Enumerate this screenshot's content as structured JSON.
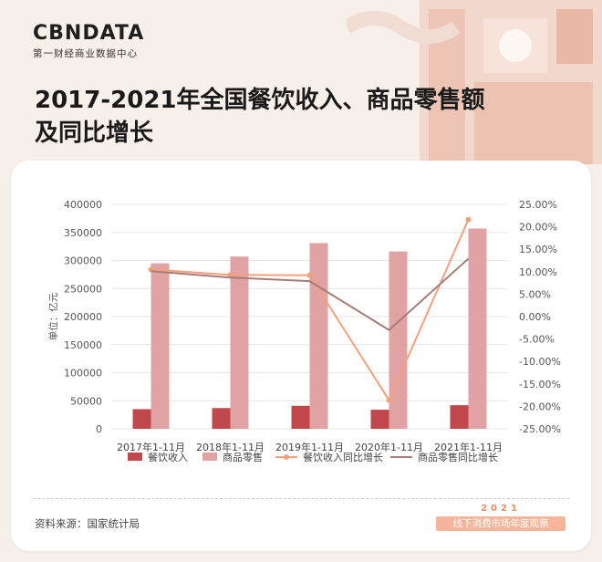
{
  "brand": {
    "logo": "CBNDATA",
    "subtitle": "第一财经商业数据中心"
  },
  "title_line1": "2017-2021年全国餐饮收入、商品零售额",
  "title_line2": "及同比增长",
  "source": "资料来源：国家统计局",
  "stamp": {
    "year": "2021",
    "text": "线下消费市场年度观察"
  },
  "colors": {
    "bar1": "#c0484c",
    "bar2": "#e1a2a3",
    "line1": "#f4a07c",
    "line2": "#a47e77",
    "background": "#f7efe9"
  },
  "chart_data": {
    "type": "bar",
    "categories": [
      "2017年1-11月",
      "2018年1-11月",
      "2019年1-11月",
      "2020年1-11月",
      "2021年1-11月"
    ],
    "series": [
      {
        "name": "餐饮收入",
        "type": "bar",
        "axis": "left",
        "values": [
          35000,
          37000,
          41000,
          34000,
          42000
        ]
      },
      {
        "name": "商品零售",
        "type": "bar",
        "axis": "left",
        "values": [
          295000,
          307000,
          331000,
          316000,
          357000
        ]
      },
      {
        "name": "餐饮收入同比增长",
        "type": "line",
        "axis": "right",
        "values": [
          10.5,
          9.3,
          9.2,
          -18.6,
          21.6
        ]
      },
      {
        "name": "商品零售同比增长",
        "type": "line",
        "axis": "right",
        "values": [
          10.1,
          8.7,
          7.9,
          -3.0,
          12.9
        ]
      }
    ],
    "ylabel": "单位：亿元",
    "ylim": [
      0,
      400000
    ],
    "yticks": [
      "400000",
      "350000",
      "300000",
      "250000",
      "200000",
      "150000",
      "100000",
      "50000",
      "0"
    ],
    "y2lim": [
      -25,
      25
    ],
    "y2ticks": [
      "25.00%",
      "20.00%",
      "15.00%",
      "10.00%",
      "5.00%",
      "0.00%",
      "-5.00%",
      "-10.00%",
      "-15.00%",
      "-20.00%",
      "-25.00%"
    ],
    "legend_position": "bottom",
    "grid": true
  }
}
